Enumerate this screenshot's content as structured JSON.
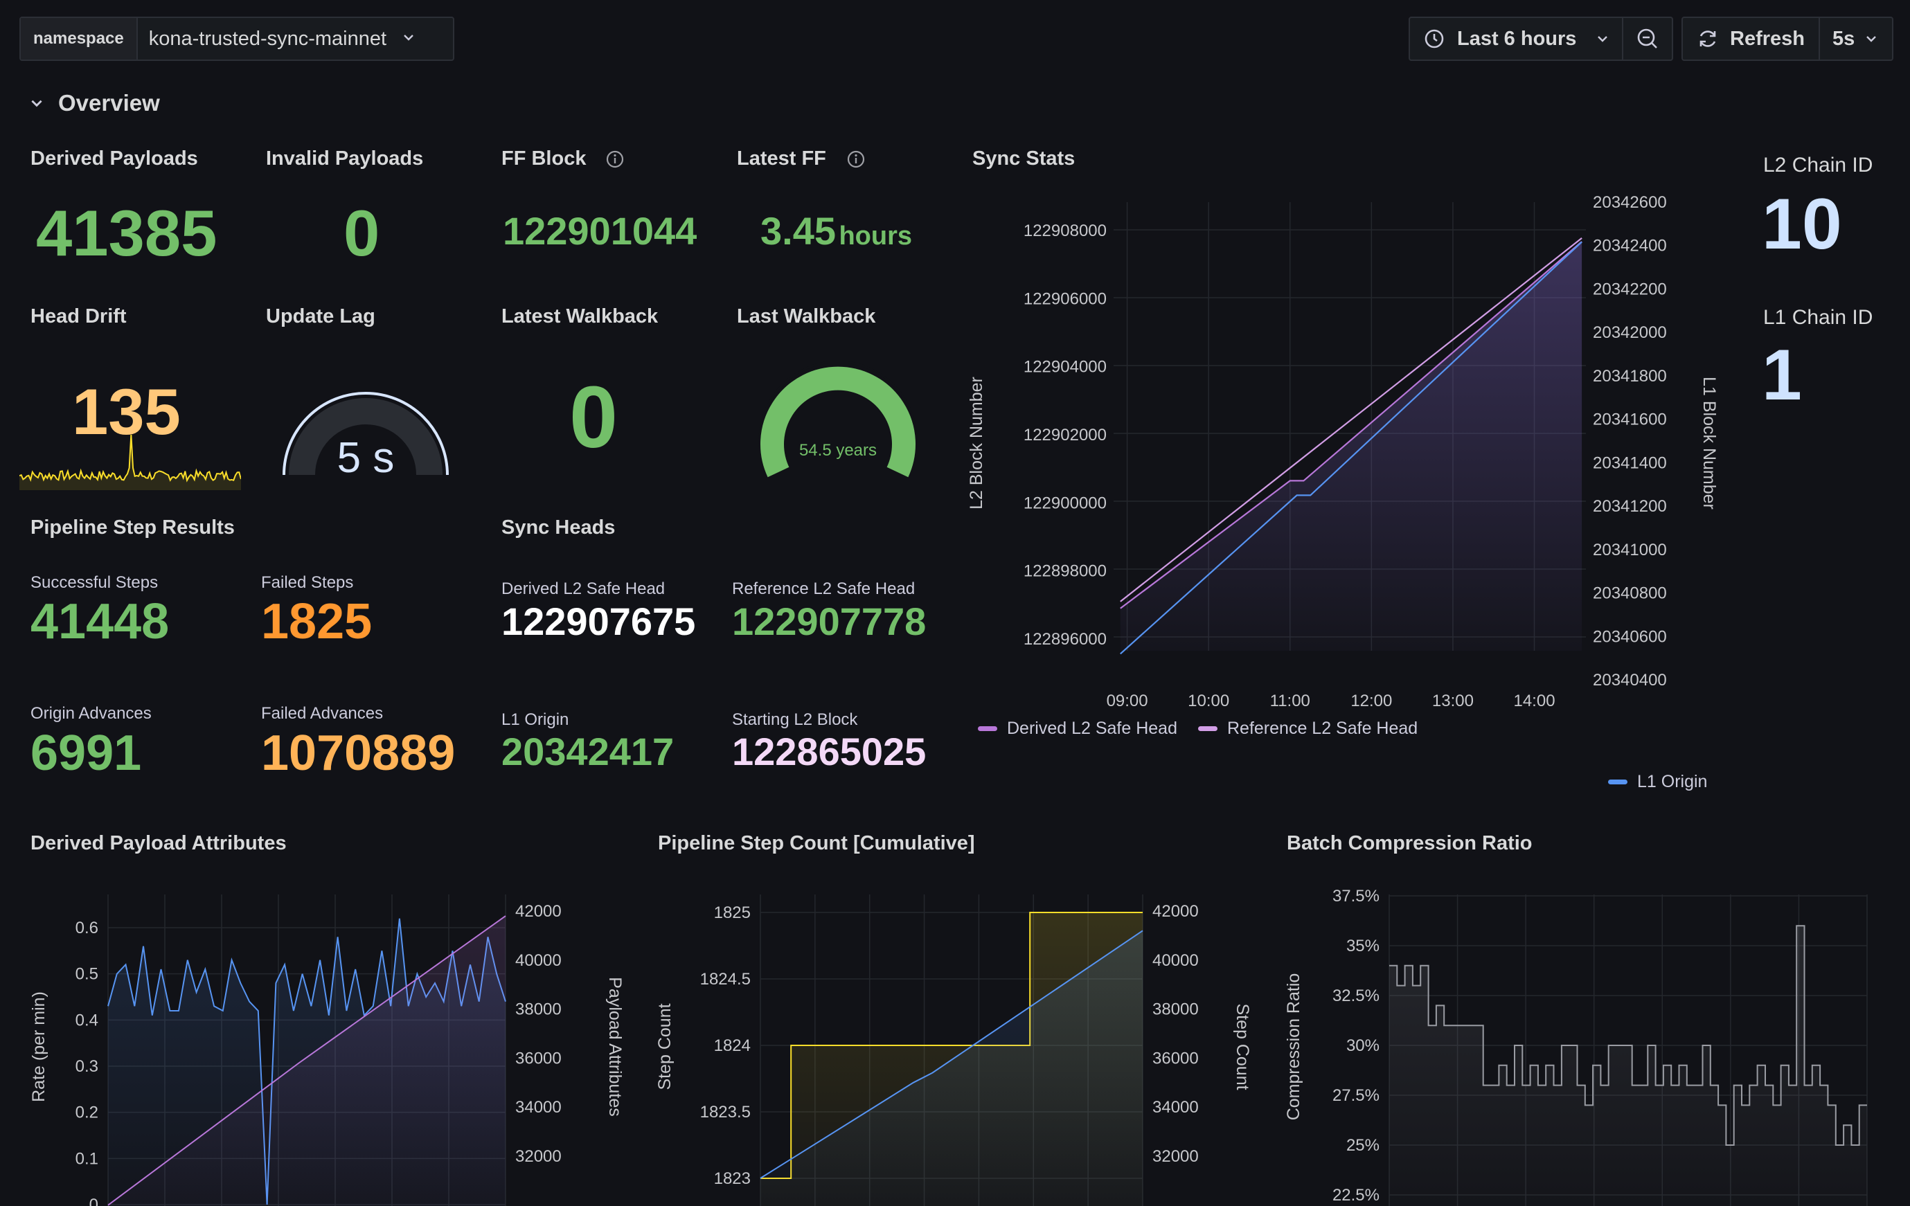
{
  "toolbar": {
    "namespace_label": "namespace",
    "namespace_value": "kona-trusted-sync-mainnet",
    "time_range": "Last 6 hours",
    "refresh_label": "Refresh",
    "refresh_interval": "5s"
  },
  "section": {
    "title": "Overview"
  },
  "stats": {
    "derived_payloads": {
      "title": "Derived Payloads",
      "value": "41385"
    },
    "invalid_payloads": {
      "title": "Invalid Payloads",
      "value": "0"
    },
    "ff_block": {
      "title": "FF Block",
      "value": "122901044"
    },
    "latest_ff": {
      "title": "Latest FF",
      "value": "3.45",
      "unit": "hours"
    },
    "head_drift": {
      "title": "Head Drift",
      "value": "135"
    },
    "update_lag": {
      "title": "Update Lag",
      "value": "5 s",
      "level": 0.02
    },
    "latest_walkback": {
      "title": "Latest Walkback",
      "value": "0"
    },
    "last_walkback": {
      "title": "Last Walkback",
      "value": "54.5 years",
      "level": 1.0
    },
    "l2_chain_id": {
      "title": "L2 Chain ID",
      "value": "10"
    },
    "l1_chain_id": {
      "title": "L1 Chain ID",
      "value": "1"
    }
  },
  "pipeline": {
    "title": "Pipeline Step Results",
    "successful_steps": {
      "label": "Successful Steps",
      "value": "41448"
    },
    "failed_steps": {
      "label": "Failed Steps",
      "value": "1825"
    },
    "origin_advances": {
      "label": "Origin Advances",
      "value": "6991"
    },
    "failed_advances": {
      "label": "Failed Advances",
      "value": "1070889"
    }
  },
  "sync_heads": {
    "title": "Sync Heads",
    "derived": {
      "label": "Derived L2 Safe Head",
      "value": "122907675"
    },
    "reference": {
      "label": "Reference L2 Safe Head",
      "value": "122907778"
    },
    "l1_origin": {
      "label": "L1 Origin",
      "value": "20342417"
    },
    "starting": {
      "label": "Starting L2 Block",
      "value": "122865025"
    }
  },
  "colors": {
    "green": "#73bf69",
    "orange": "#ff9830",
    "yellow": "#fade2a",
    "purple": "#b877d9",
    "blue": "#5794f2",
    "light_blue": "#cfe3ff",
    "pink": "#f4d9f7"
  },
  "chart_data": [
    {
      "id": "sync_stats",
      "type": "line",
      "title": "Sync Stats",
      "x_ticks": [
        "09:00",
        "10:00",
        "11:00",
        "12:00",
        "13:00",
        "14:00"
      ],
      "ylabel": "L2 Block Number",
      "y_ticks": [
        "122908000",
        "122906000",
        "122904000",
        "122902000",
        "122900000",
        "122898000",
        "122896000"
      ],
      "ylim": [
        122895000,
        122909000
      ],
      "y2label": "L1 Block Number",
      "y2_ticks": [
        "20342600",
        "20342400",
        "20342200",
        "20342000",
        "20341800",
        "20341600",
        "20341400",
        "20341200",
        "20341000",
        "20340800",
        "20340600",
        "20340400"
      ],
      "y2lim": [
        20340400,
        20342600
      ],
      "series": [
        {
          "name": "Derived L2 Safe Head",
          "axis": "left",
          "color": "#b877d9",
          "x": [
            "08:55",
            "11:00",
            "11:10",
            "14:35"
          ],
          "y": [
            122896900,
            122900650,
            122900650,
            122907675
          ]
        },
        {
          "name": "Reference L2 Safe Head",
          "axis": "left",
          "color": "#d29ee6",
          "x": [
            "08:55",
            "14:35"
          ],
          "y": [
            122897100,
            122907778
          ]
        },
        {
          "name": "L1 Origin",
          "axis": "right",
          "color": "#5794f2",
          "x": [
            "08:55",
            "11:05",
            "11:15",
            "14:35"
          ],
          "y": [
            20340520,
            20341250,
            20341250,
            20342417
          ]
        }
      ],
      "legend": [
        "Derived L2 Safe Head",
        "Reference L2 Safe Head",
        "L1 Origin"
      ]
    },
    {
      "id": "derived_payload_attributes",
      "type": "line",
      "title": "Derived Payload Attributes",
      "ylabel": "Rate (per min)",
      "y_ticks": [
        "0.6",
        "0.5",
        "0.4",
        "0.3",
        "0.2",
        "0.1",
        "0"
      ],
      "ylim": [
        0,
        0.6
      ],
      "y2label": "Payload Attributes",
      "y2_ticks": [
        "42000",
        "40000",
        "38000",
        "36000",
        "34000",
        "32000"
      ],
      "y2lim": [
        30000,
        42000
      ],
      "series": [
        {
          "name": "Rate",
          "axis": "left",
          "color": "#5794f2",
          "values": [
            0.43,
            0.5,
            0.52,
            0.43,
            0.56,
            0.41,
            0.51,
            0.42,
            0.42,
            0.53,
            0.46,
            0.51,
            0.43,
            0.42,
            0.53,
            0.48,
            0.44,
            0.42,
            0.0,
            0.48,
            0.52,
            0.42,
            0.5,
            0.43,
            0.53,
            0.41,
            0.58,
            0.42,
            0.51,
            0.41,
            0.43,
            0.55,
            0.43,
            0.62,
            0.43,
            0.5,
            0.45,
            0.48,
            0.44,
            0.55,
            0.43,
            0.52,
            0.44,
            0.58,
            0.5,
            0.44
          ]
        },
        {
          "name": "Payload Attributes",
          "axis": "right",
          "color": "#b877d9",
          "x_frac": [
            0,
            0.48,
            1
          ],
          "values": [
            30000,
            35800,
            41800
          ]
        }
      ]
    },
    {
      "id": "pipeline_step_count",
      "type": "line",
      "title": "Pipeline Step Count [Cumulative]",
      "ylabel": "Step Count",
      "y_ticks": [
        "1825",
        "1824.5",
        "1824",
        "1823.5",
        "1823"
      ],
      "ylim": [
        1823,
        1825
      ],
      "y2label": "Step Count",
      "y2_ticks": [
        "42000",
        "40000",
        "38000",
        "36000",
        "34000",
        "32000"
      ],
      "y2lim": [
        31100,
        42000
      ],
      "series": [
        {
          "name": "Failed Steps",
          "axis": "left",
          "color": "#fade2a",
          "x_frac": [
            0,
            0.08,
            0.08,
            0.705,
            0.705,
            1
          ],
          "values": [
            1823,
            1823,
            1824,
            1824,
            1825,
            1825
          ]
        },
        {
          "name": "Successful Steps",
          "axis": "right",
          "color": "#5794f2",
          "x_frac": [
            0,
            0.4,
            0.45,
            1
          ],
          "values": [
            31100,
            35000,
            35400,
            41200
          ]
        }
      ]
    },
    {
      "id": "batch_compression_ratio",
      "type": "line",
      "title": "Batch Compression Ratio",
      "ylabel": "Compression Ratio",
      "y_ticks": [
        "37.5%",
        "35%",
        "32.5%",
        "30%",
        "27.5%",
        "25%",
        "22.5%"
      ],
      "ylim": [
        22.5,
        37.5
      ],
      "series": [
        {
          "name": "Compression Ratio",
          "color": "#9a9ca3",
          "values": [
            34,
            33,
            34,
            33,
            34,
            31,
            32,
            31,
            31,
            31,
            31,
            31,
            28,
            28,
            29,
            28,
            30,
            28,
            29,
            28,
            29,
            28,
            30,
            30,
            28,
            27,
            29,
            28,
            30,
            30,
            30,
            28,
            28,
            30,
            28,
            29,
            28,
            29,
            28,
            28,
            30,
            28,
            27,
            25,
            28,
            27,
            28,
            29,
            28,
            27,
            29,
            28,
            36,
            28,
            29,
            28,
            27,
            25,
            26,
            25,
            27
          ]
        }
      ]
    }
  ]
}
